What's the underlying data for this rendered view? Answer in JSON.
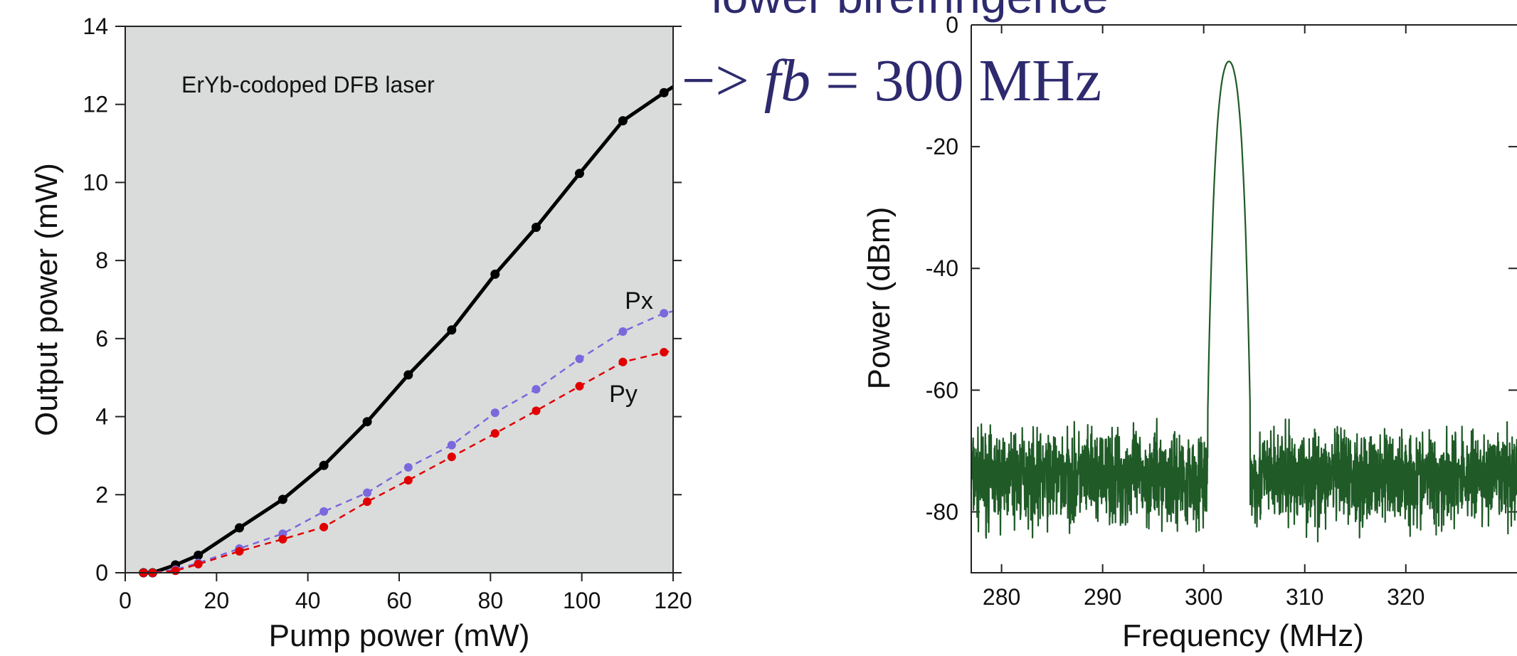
{
  "overlay": {
    "heading_fragment": "lower birefringence",
    "arrow": "−>",
    "fb_symbol": "fb",
    "fb_value": "= 300 MHz"
  },
  "colors": {
    "panel_bg": "#dadcdb",
    "total": "#000000",
    "px": "#7b68dd",
    "py": "#e00000",
    "spectrum": "#1f5a27",
    "overlay_text": "#2e2a6e"
  },
  "chart_data": [
    {
      "type": "line",
      "annotation": "ErYb-codoped DFB laser",
      "xlabel": "Pump power (mW)",
      "ylabel": "Output power (mW)",
      "xlim": [
        0,
        120
      ],
      "ylim": [
        0,
        14
      ],
      "xticks": [
        "0",
        "20",
        "40",
        "60",
        "80",
        "100",
        "120"
      ],
      "yticks": [
        "0",
        "2",
        "4",
        "6",
        "8",
        "10",
        "12",
        "14"
      ],
      "grid": false,
      "series": [
        {
          "name": "",
          "style": "solid",
          "points": [
            [
              4,
              0
            ],
            [
              6,
              0
            ],
            [
              11,
              0.2
            ],
            [
              16,
              0.45
            ],
            [
              25,
              1.15
            ],
            [
              34.5,
              1.88
            ],
            [
              43.5,
              2.75
            ],
            [
              53,
              3.87
            ],
            [
              62,
              5.07
            ],
            [
              71.5,
              6.22
            ],
            [
              81,
              7.65
            ],
            [
              90,
              8.85
            ],
            [
              99.5,
              10.23
            ],
            [
              109,
              11.58
            ],
            [
              118,
              12.3
            ],
            [
              120,
              12.45
            ]
          ]
        },
        {
          "name": "Px",
          "style": "dashed",
          "points": [
            [
              4,
              0
            ],
            [
              6,
              0
            ],
            [
              11,
              0.08
            ],
            [
              16,
              0.25
            ],
            [
              25,
              0.62
            ],
            [
              34.5,
              1.0
            ],
            [
              43.5,
              1.57
            ],
            [
              53,
              2.05
            ],
            [
              62,
              2.7
            ],
            [
              71.5,
              3.27
            ],
            [
              81,
              4.1
            ],
            [
              90,
              4.7
            ],
            [
              99.5,
              5.48
            ],
            [
              109,
              6.18
            ],
            [
              118,
              6.65
            ],
            [
              120,
              6.7
            ]
          ]
        },
        {
          "name": "Py",
          "style": "dashed",
          "points": [
            [
              4,
              0
            ],
            [
              6,
              0
            ],
            [
              11,
              0.05
            ],
            [
              16,
              0.22
            ],
            [
              25,
              0.55
            ],
            [
              34.5,
              0.86
            ],
            [
              43.5,
              1.17
            ],
            [
              53,
              1.82
            ],
            [
              62,
              2.37
            ],
            [
              71.5,
              2.97
            ],
            [
              81,
              3.57
            ],
            [
              90,
              4.15
            ],
            [
              99.5,
              4.78
            ],
            [
              109,
              5.4
            ],
            [
              118,
              5.65
            ],
            [
              120,
              5.68
            ]
          ]
        }
      ]
    },
    {
      "type": "line",
      "xlabel": "Frequency (MHz)",
      "ylabel": "Power (dBm)",
      "xlim": [
        277,
        331
      ],
      "ylim": [
        -90,
        0
      ],
      "xticks": [
        "280",
        "290",
        "300",
        "310",
        "320"
      ],
      "yticks": [
        "0",
        "-20",
        "-40",
        "-60",
        "-80"
      ],
      "grid": false,
      "noise_floor_dBm": -74,
      "noise_spread_dBm": [
        -88,
        -62
      ],
      "series": [
        {
          "name": "",
          "peak_frequency_MHz": 302.5,
          "peak_power_dBm": -6
        }
      ]
    }
  ]
}
